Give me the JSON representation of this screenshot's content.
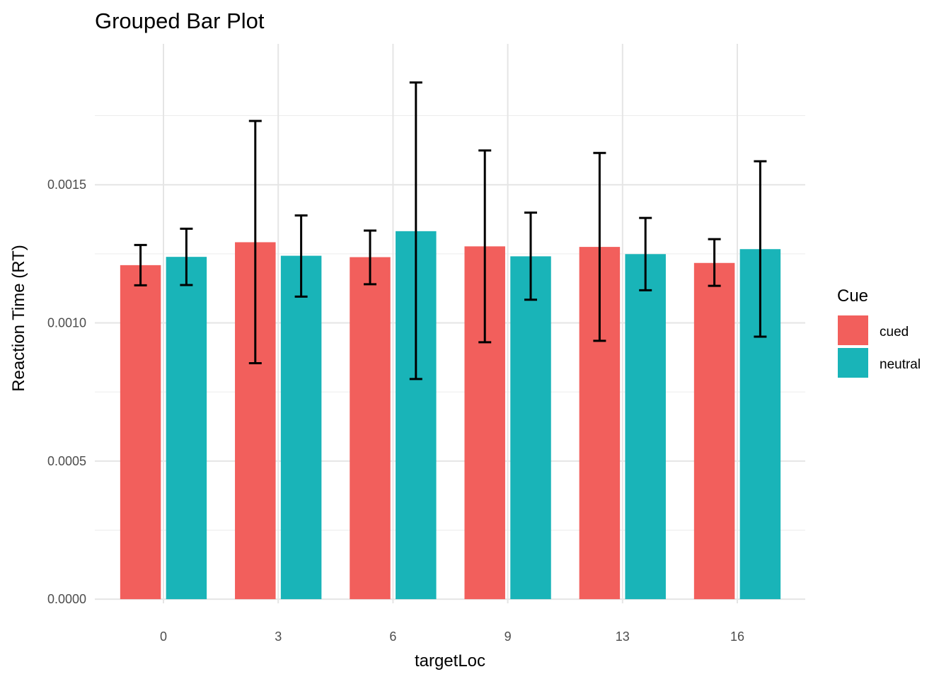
{
  "chart_data": {
    "type": "bar",
    "title": "Grouped Bar Plot",
    "xlabel": "targetLoc",
    "ylabel": "Reaction Time (RT)",
    "categories": [
      "0",
      "3",
      "6",
      "9",
      "13",
      "16"
    ],
    "ylim": [
      -1.5e-05,
      0.00201
    ],
    "y_ticks": [
      0,
      0.0005,
      0.001,
      0.0015
    ],
    "y_tick_labels": [
      "0.0000",
      "0.0005",
      "0.0010",
      "0.0015"
    ],
    "grid": true,
    "legend": {
      "title": "Cue",
      "position": "right"
    },
    "series": [
      {
        "name": "cued",
        "color": "#F25F5C",
        "values": [
          0.001209,
          0.001292,
          0.001238,
          0.001277,
          0.001275,
          0.001217
        ],
        "error_low": [
          0.001136,
          0.000854,
          0.00114,
          0.00093,
          0.000935,
          0.001134
        ],
        "error_high": [
          0.001282,
          0.001731,
          0.001334,
          0.001624,
          0.001615,
          0.001303
        ]
      },
      {
        "name": "neutral",
        "color": "#19B4B8",
        "values": [
          0.001239,
          0.001243,
          0.001332,
          0.001241,
          0.001249,
          0.001267
        ],
        "error_low": [
          0.001137,
          0.001095,
          0.000797,
          0.001084,
          0.001118,
          0.00095
        ],
        "error_high": [
          0.001341,
          0.001389,
          0.00187,
          0.001399,
          0.00138,
          0.001585
        ]
      }
    ]
  }
}
